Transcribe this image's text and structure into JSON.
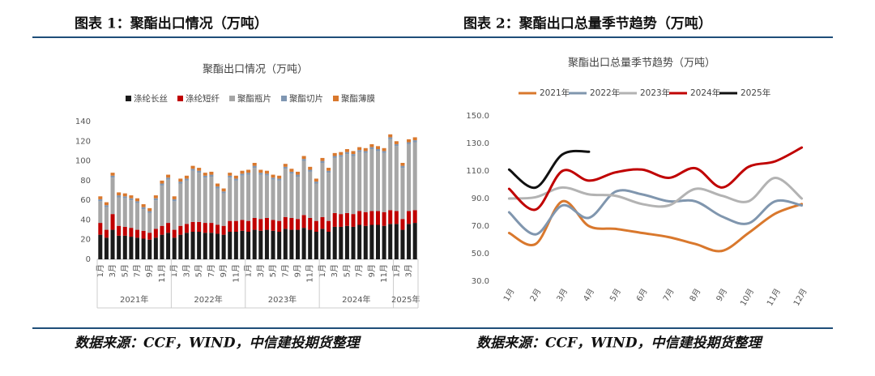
{
  "captions": [
    "图表 1：聚酯出口情况（万吨）",
    "图表 2：聚酯出口总量季节趋势（万吨）"
  ],
  "sources": [
    "数据来源：CCF，WIND，中信建投期货整理",
    "数据来源：CCF，WIND，中信建投期货整理"
  ],
  "chart_data": [
    {
      "type": "bar",
      "stacked": true,
      "title": "聚酯出口情况（万吨）",
      "categories": [
        "1月",
        null,
        "3月",
        null,
        "5月",
        null,
        "7月",
        null,
        "9月",
        null,
        "11月",
        null,
        "1月",
        null,
        "3月",
        null,
        "5月",
        null,
        "7月",
        null,
        "9月",
        null,
        "11月",
        null,
        "1月",
        null,
        "3月",
        null,
        "5月",
        null,
        "7月",
        null,
        "9月",
        null,
        "11月",
        null,
        "1月",
        null,
        "3月",
        null,
        "5月",
        null,
        "7月",
        null,
        "9月",
        null,
        "11月",
        null,
        "1月",
        null,
        "3月",
        null
      ],
      "x_groups": [
        "2021年",
        "2022年",
        "2023年",
        "2024年",
        "2025年"
      ],
      "series": [
        {
          "name": "涤纶长丝",
          "color": "#1a1a1a",
          "values": [
            25,
            22,
            30,
            24,
            24,
            23,
            22,
            21,
            20,
            22,
            25,
            27,
            22,
            25,
            27,
            28,
            28,
            27,
            27,
            26,
            25,
            28,
            28,
            29,
            28,
            30,
            29,
            30,
            29,
            28,
            31,
            30,
            30,
            32,
            30,
            28,
            31,
            28,
            33,
            33,
            34,
            33,
            35,
            34,
            35,
            35,
            34,
            36,
            36,
            30,
            36,
            37
          ]
        },
        {
          "name": "涤纶短纤",
          "color": "#c00000",
          "values": [
            12,
            8,
            16,
            10,
            9,
            9,
            8,
            8,
            7,
            9,
            9,
            10,
            8,
            9,
            9,
            10,
            10,
            10,
            10,
            9,
            9,
            11,
            11,
            11,
            11,
            12,
            12,
            12,
            11,
            11,
            12,
            12,
            11,
            13,
            12,
            11,
            12,
            11,
            14,
            13,
            13,
            13,
            14,
            14,
            14,
            14,
            14,
            14,
            13,
            11,
            13,
            13
          ]
        },
        {
          "name": "聚酯瓶片",
          "color": "#a6a6a6",
          "values": [
            22,
            23,
            37,
            29,
            29,
            28,
            27,
            22,
            20,
            29,
            41,
            44,
            29,
            43,
            44,
            52,
            50,
            46,
            47,
            37,
            33,
            44,
            41,
            45,
            47,
            51,
            45,
            43,
            41,
            41,
            49,
            45,
            43,
            55,
            47,
            38,
            55,
            49,
            56,
            58,
            60,
            59,
            60,
            60,
            63,
            61,
            60,
            72,
            66,
            52,
            68,
            69
          ]
        },
        {
          "name": "聚酯切片",
          "color": "#7f96b2",
          "values": [
            2,
            2,
            2,
            2,
            2,
            2,
            2,
            2,
            2,
            2,
            2,
            2,
            2,
            2,
            2,
            2,
            2,
            2,
            2,
            2,
            2,
            2,
            2,
            2,
            2,
            2,
            2,
            2,
            2,
            2,
            2,
            2,
            2,
            2,
            2,
            2,
            2,
            2,
            2,
            2,
            2,
            2,
            2,
            2,
            2,
            2,
            2,
            2,
            2,
            2,
            2,
            2
          ]
        },
        {
          "name": "聚酯薄膜",
          "color": "#d9782d",
          "values": [
            3,
            3,
            3,
            3,
            3,
            3,
            3,
            3,
            3,
            3,
            3,
            3,
            3,
            3,
            3,
            3,
            3,
            3,
            3,
            3,
            3,
            3,
            3,
            3,
            3,
            3,
            3,
            3,
            3,
            3,
            3,
            3,
            3,
            3,
            3,
            3,
            3,
            3,
            3,
            3,
            3,
            3,
            3,
            3,
            3,
            3,
            3,
            3,
            3,
            3,
            3,
            3
          ]
        }
      ],
      "ylim": [
        0,
        140
      ],
      "yticks": [
        0,
        20,
        40,
        60,
        80,
        100,
        120,
        140
      ],
      "grid": false
    },
    {
      "type": "line",
      "title": "聚酯出口总量季节趋势（万吨）",
      "categories": [
        "1月",
        "2月",
        "3月",
        "4月",
        "5月",
        "6月",
        "7月",
        "8月",
        "9月",
        "10月",
        "11月",
        "12月"
      ],
      "series": [
        {
          "name": "2021年",
          "color": "#d9782d",
          "values": [
            65,
            57,
            88,
            70,
            68,
            65,
            62,
            57,
            52,
            65,
            79,
            86
          ]
        },
        {
          "name": "2022年",
          "color": "#8096ae",
          "values": [
            80,
            64,
            85,
            76,
            95,
            93,
            88,
            88,
            77,
            72,
            88,
            85
          ]
        },
        {
          "name": "2023年",
          "color": "#b3b3b3",
          "values": [
            90,
            91,
            98,
            93,
            92,
            86,
            85,
            97,
            92,
            88,
            105,
            90
          ]
        },
        {
          "name": "2024年",
          "color": "#c00000",
          "values": [
            97,
            82,
            110,
            103,
            109,
            111,
            105,
            112,
            98,
            113,
            117,
            127
          ]
        },
        {
          "name": "2025年",
          "color": "#111111",
          "values": [
            111,
            98,
            122,
            124,
            null,
            null,
            null,
            null,
            null,
            null,
            null,
            null
          ]
        }
      ],
      "ylim": [
        30,
        150
      ],
      "yticks": [
        {
          "value": 30,
          "label": "30.0"
        },
        {
          "value": 50,
          "label": "50.0"
        },
        {
          "value": 70,
          "label": "70.0"
        },
        {
          "value": 90,
          "label": "90.0"
        },
        {
          "value": 110,
          "label": "110.0"
        },
        {
          "value": 130,
          "label": "130.0"
        },
        {
          "value": 150,
          "label": "150.0"
        }
      ],
      "grid": false,
      "smooth": true
    }
  ]
}
